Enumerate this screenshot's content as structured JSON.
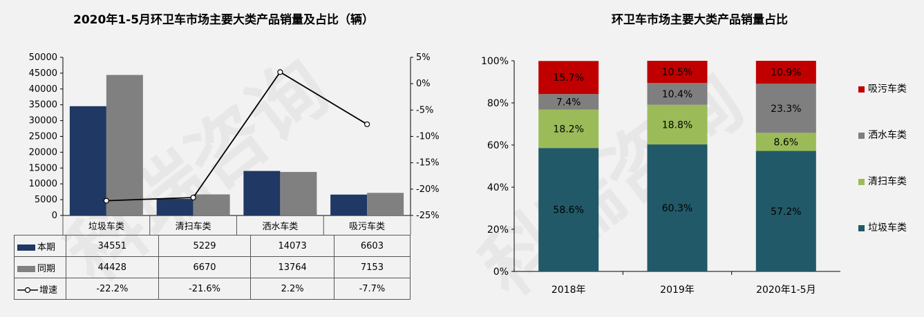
{
  "charts": [
    {
      "title": "2020年1-5月环卫车市场主要大类产品销量及占比（辆）"
    },
    {
      "title": "环卫车市场主要大类产品销量占比"
    }
  ],
  "chart_data": [
    {
      "type": "bar",
      "categories": [
        "垃圾车类",
        "清扫车类",
        "洒水车类",
        "吸污车类"
      ],
      "series": [
        {
          "name": "本期",
          "values": [
            34551,
            5229,
            14073,
            6603
          ],
          "color": "#1f3864",
          "display": [
            "34551",
            "5229",
            "14073",
            "6603"
          ]
        },
        {
          "name": "同期",
          "values": [
            44428,
            6670,
            13764,
            7153
          ],
          "color": "#808080",
          "display": [
            "44428",
            "6670",
            "13764",
            "7153"
          ]
        }
      ],
      "line_series": {
        "name": "增速",
        "values": [
          -22.2,
          -21.6,
          2.2,
          -7.7
        ],
        "display": [
          "-22.2%",
          "-21.6%",
          "2.2%",
          "-7.7%"
        ],
        "color": "#000000"
      },
      "ylim": [
        0,
        50000
      ],
      "yticks": [
        "0",
        "5000",
        "10000",
        "15000",
        "20000",
        "25000",
        "30000",
        "35000",
        "40000",
        "45000",
        "50000"
      ],
      "y2lim": [
        -25,
        5
      ],
      "y2ticks": [
        "-25%",
        "-20%",
        "-15%",
        "-10%",
        "-5%",
        "0%",
        "5%"
      ],
      "legend": "data-table"
    },
    {
      "type": "bar",
      "stacked": true,
      "categories": [
        "2018年",
        "2019年",
        "2020年1-5月"
      ],
      "series": [
        {
          "name": "垃圾车类",
          "values": [
            58.6,
            60.3,
            57.2
          ],
          "color": "#215968",
          "labels": [
            "58.6%",
            "60.3%",
            "57.2%"
          ]
        },
        {
          "name": "清扫车类",
          "values": [
            18.2,
            18.8,
            8.6
          ],
          "color": "#9bbb59",
          "labels": [
            "18.2%",
            "18.8%",
            "8.6%"
          ]
        },
        {
          "name": "洒水车类",
          "values": [
            7.4,
            10.4,
            23.3
          ],
          "color": "#7f7f7f",
          "labels": [
            "7.4%",
            "10.4%",
            "23.3%"
          ]
        },
        {
          "name": "吸污车类",
          "values": [
            15.7,
            10.5,
            10.9
          ],
          "color": "#c00000",
          "labels": [
            "15.7%",
            "10.5%",
            "10.9%"
          ]
        }
      ],
      "ylim": [
        0,
        100
      ],
      "yticks": [
        "0%",
        "20%",
        "40%",
        "60%",
        "80%",
        "100%"
      ],
      "legend_order": [
        "吸污车类",
        "洒水车类",
        "清扫车类",
        "垃圾车类"
      ],
      "legend": "right"
    }
  ]
}
